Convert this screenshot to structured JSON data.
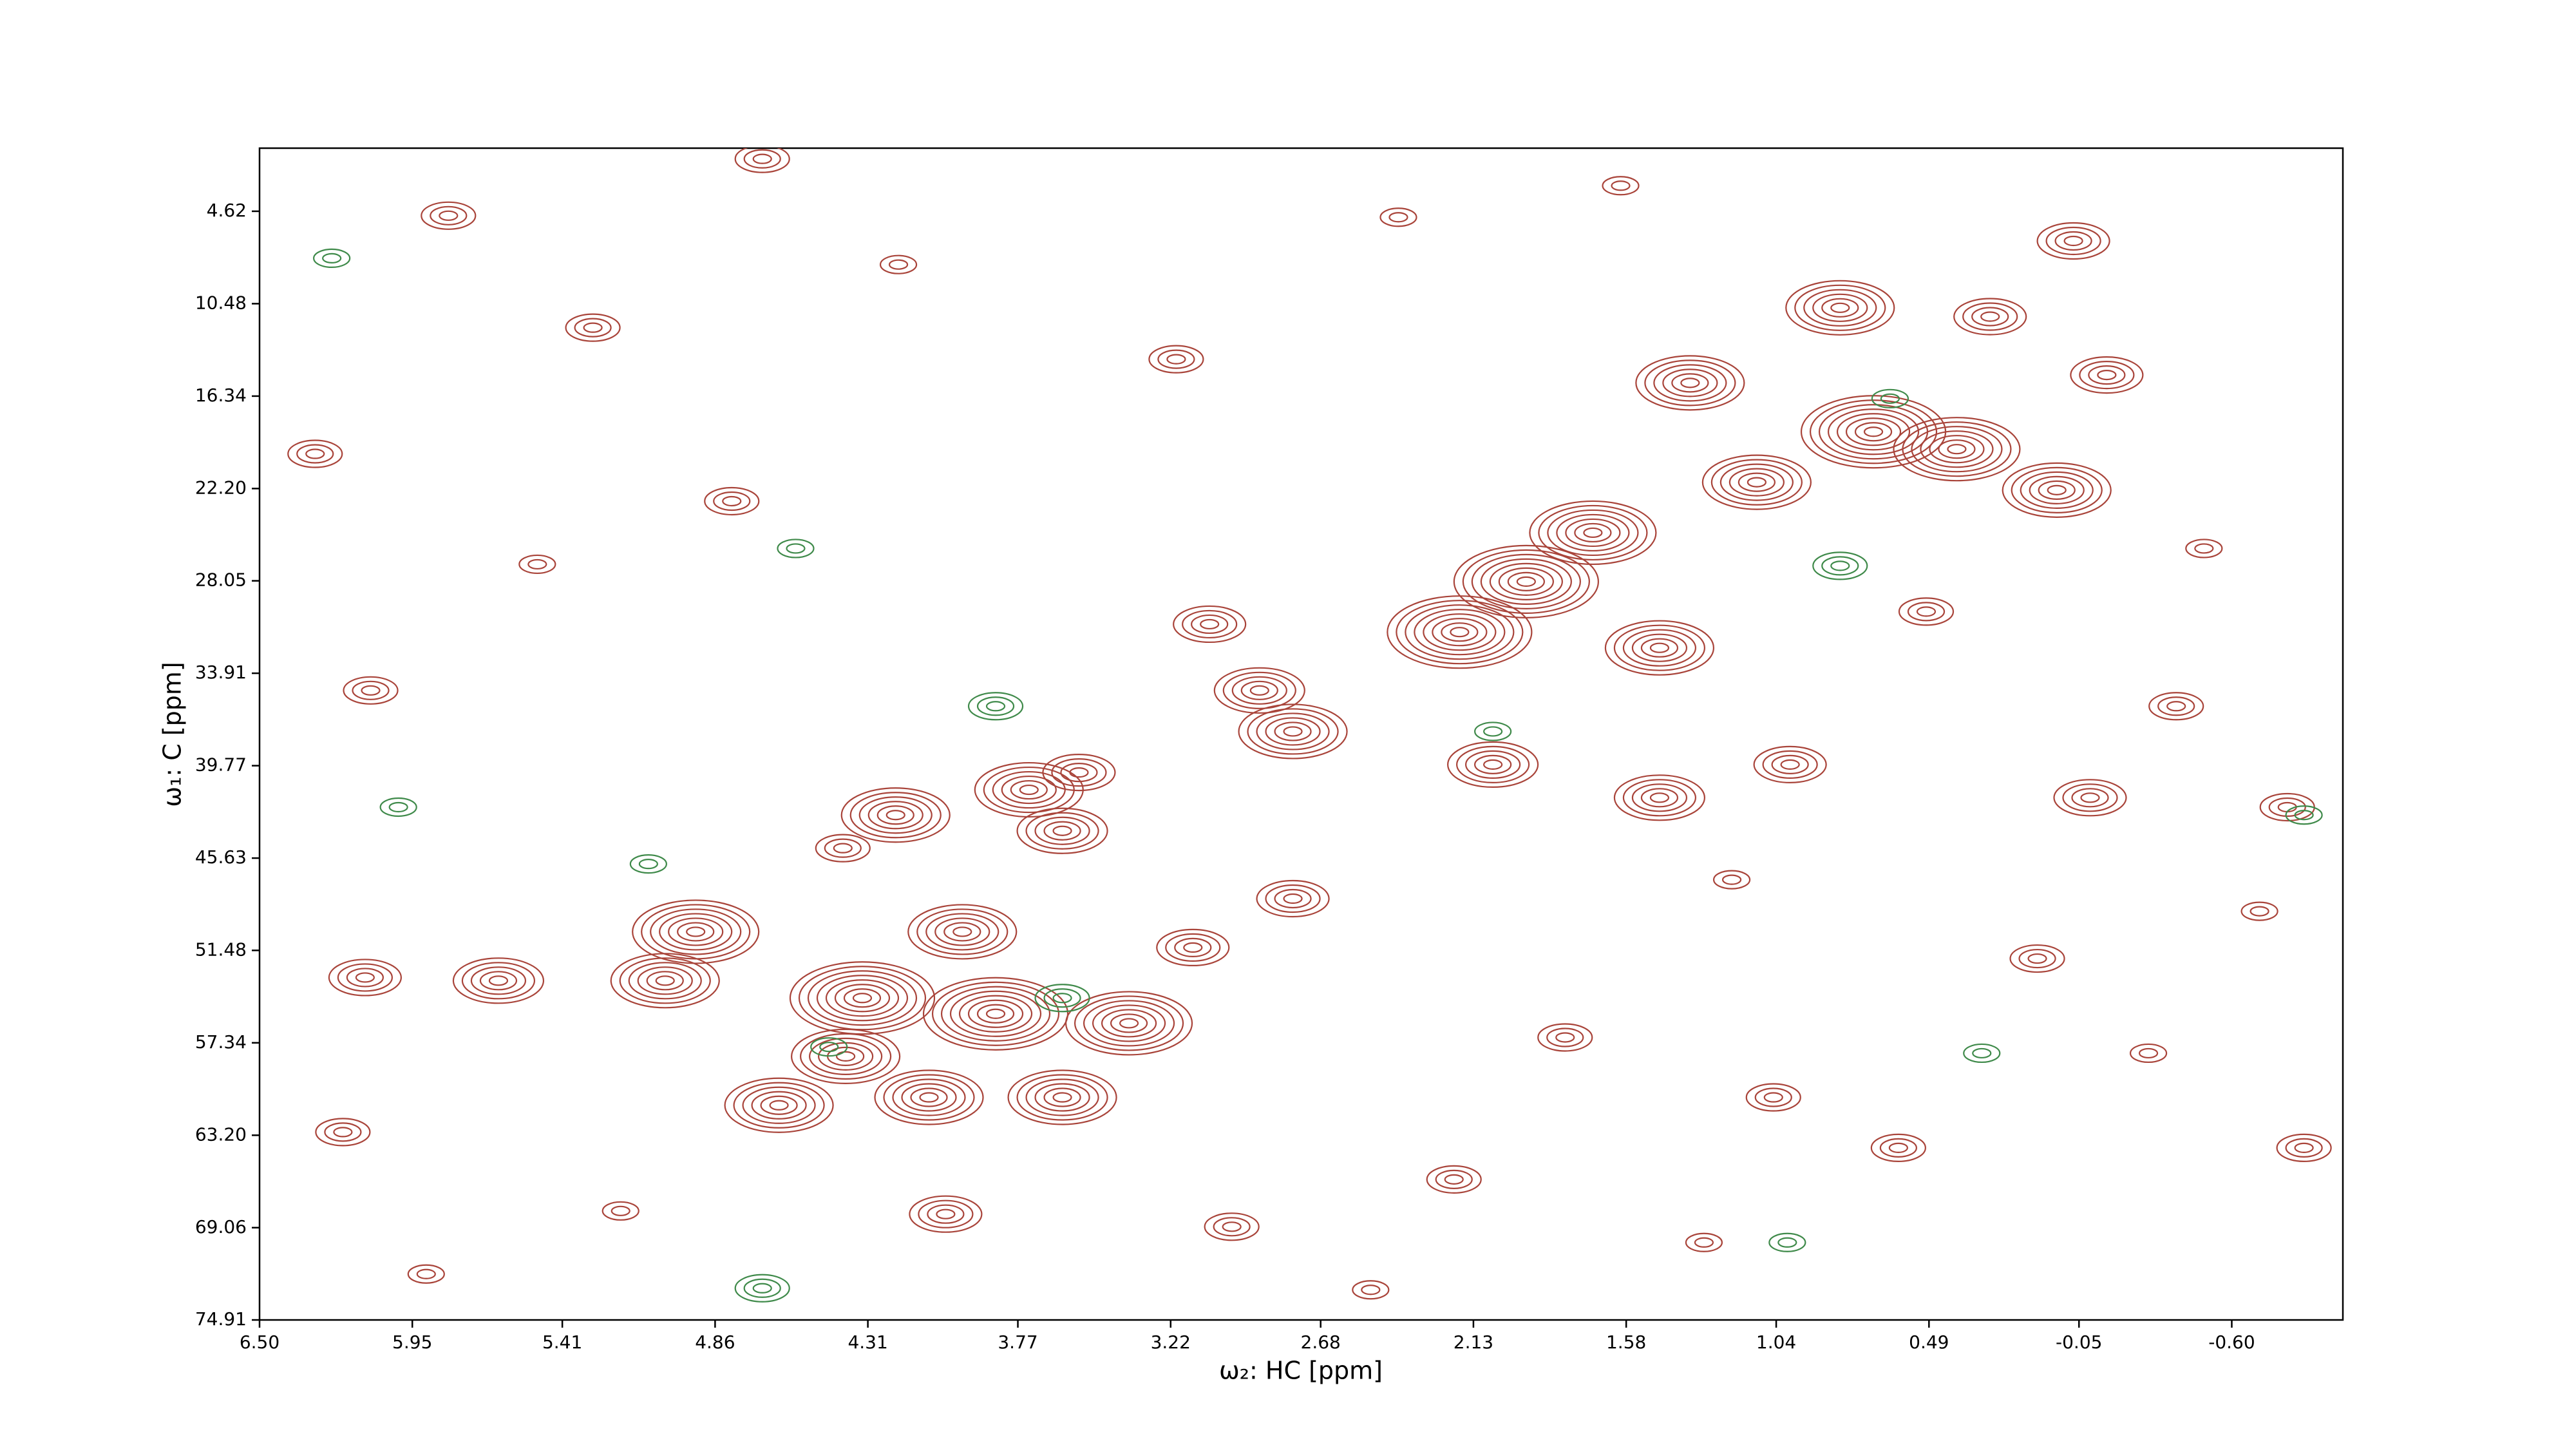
{
  "chart_data": {
    "type": "contour",
    "x_label": "ω₂: HC [ppm]",
    "y_label": "ω₁: C [ppm]",
    "xlim": [
      6.5,
      -1.0
    ],
    "ylim": [
      74.91,
      0.62
    ],
    "xticks": [
      {
        "value": 6.5,
        "label": "6.50"
      },
      {
        "value": 5.95,
        "label": "5.95"
      },
      {
        "value": 5.41,
        "label": "5.41"
      },
      {
        "value": 4.86,
        "label": "4.86"
      },
      {
        "value": 4.31,
        "label": "4.31"
      },
      {
        "value": 3.77,
        "label": "3.77"
      },
      {
        "value": 3.22,
        "label": "3.22"
      },
      {
        "value": 2.68,
        "label": "2.68"
      },
      {
        "value": 2.13,
        "label": "2.13"
      },
      {
        "value": 1.58,
        "label": "1.58"
      },
      {
        "value": 1.04,
        "label": "1.04"
      },
      {
        "value": 0.49,
        "label": "0.49"
      },
      {
        "value": -0.05,
        "label": "-0.05"
      },
      {
        "value": -0.6,
        "label": "-0.60"
      }
    ],
    "yticks": [
      {
        "value": 4.62,
        "label": "4.62"
      },
      {
        "value": 10.48,
        "label": "10.48"
      },
      {
        "value": 16.34,
        "label": "16.34"
      },
      {
        "value": 22.2,
        "label": "22.20"
      },
      {
        "value": 28.05,
        "label": "28.05"
      },
      {
        "value": 33.91,
        "label": "33.91"
      },
      {
        "value": 39.77,
        "label": "39.77"
      },
      {
        "value": 45.63,
        "label": "45.63"
      },
      {
        "value": 51.48,
        "label": "51.48"
      },
      {
        "value": 57.34,
        "label": "57.34"
      },
      {
        "value": 63.2,
        "label": "63.20"
      },
      {
        "value": 69.06,
        "label": "69.06"
      },
      {
        "value": 74.91,
        "label": "74.91"
      }
    ],
    "series": [
      {
        "color": "#a9443a",
        "x": [
          0.81,
          1.35,
          0.69,
          0.39,
          0.03,
          1.11,
          1.94,
          2.18,
          1.7,
          1.46,
          2.78,
          2.9,
          3.08,
          2.06,
          1.46,
          0.99,
          -0.09,
          -0.8,
          3.73,
          3.61,
          4.21,
          3.97,
          4.33,
          4.93,
          5.04,
          3.85,
          3.37,
          3.61,
          4.09,
          4.63,
          4.39,
          5.64,
          6.12,
          3.14,
          2.78,
          -0.03,
          -0.15,
          0.27,
          1.05,
          4.03,
          3.55,
          -0.86,
          5.82,
          4.69,
          6.3,
          5.3,
          4.2,
          3.2,
          2.4,
          1.6,
          0.5,
          -0.5,
          6.1,
          5.5,
          4.8,
          2.2,
          1.3,
          0.1,
          -0.7,
          5.9,
          4.4,
          2.5,
          1.8,
          0.6,
          -0.3,
          6.2,
          5.2,
          3.0,
          1.2,
          -0.4
        ],
        "y": [
          10.74,
          15.5,
          18.6,
          19.7,
          22.3,
          21.8,
          28.1,
          31.3,
          25.0,
          32.3,
          37.6,
          35.0,
          30.8,
          39.7,
          41.8,
          39.7,
          41.8,
          42.4,
          41.3,
          43.9,
          42.9,
          50.3,
          54.5,
          50.3,
          53.4,
          55.5,
          56.1,
          60.8,
          60.8,
          61.3,
          58.2,
          53.4,
          53.2,
          51.3,
          48.2,
          6.5,
          15.0,
          11.3,
          60.8,
          68.2,
          40.2,
          64.0,
          4.9,
          1.3,
          20.0,
          12.0,
          8.0,
          14.0,
          5.0,
          3.0,
          30.0,
          26.0,
          35.0,
          27.0,
          23.0,
          66.0,
          70.0,
          52.0,
          49.0,
          72.0,
          45.0,
          73.0,
          57.0,
          64.0,
          58.0,
          63.0,
          68.0,
          69.0,
          47.0,
          36.0
        ],
        "levels": [
          6,
          6,
          8,
          7,
          6,
          6,
          8,
          8,
          7,
          6,
          6,
          5,
          4,
          5,
          5,
          4,
          4,
          3,
          6,
          5,
          6,
          6,
          8,
          7,
          6,
          8,
          7,
          6,
          6,
          6,
          6,
          5,
          4,
          4,
          4,
          4,
          4,
          4,
          3,
          4,
          4,
          3,
          3,
          3,
          3,
          3,
          2,
          3,
          2,
          2,
          3,
          2,
          3,
          2,
          3,
          3,
          2,
          3,
          2,
          2,
          3,
          2,
          3,
          3,
          2,
          3,
          2,
          3,
          2,
          3
        ]
      },
      {
        "color": "#3f8a4a",
        "x": [
          3.85,
          0.81,
          0.63,
          3.61,
          4.45,
          4.69,
          6.24,
          4.57,
          -0.86,
          6.0,
          2.06,
          5.1,
          1.0,
          0.3
        ],
        "y": [
          36.0,
          27.1,
          16.5,
          54.5,
          57.6,
          72.9,
          7.6,
          26.0,
          42.9,
          42.4,
          37.6,
          46.0,
          70.0,
          58.0
        ],
        "levels": [
          3,
          3,
          2,
          3,
          2,
          3,
          2,
          2,
          2,
          2,
          2,
          2,
          2,
          2
        ]
      }
    ]
  }
}
